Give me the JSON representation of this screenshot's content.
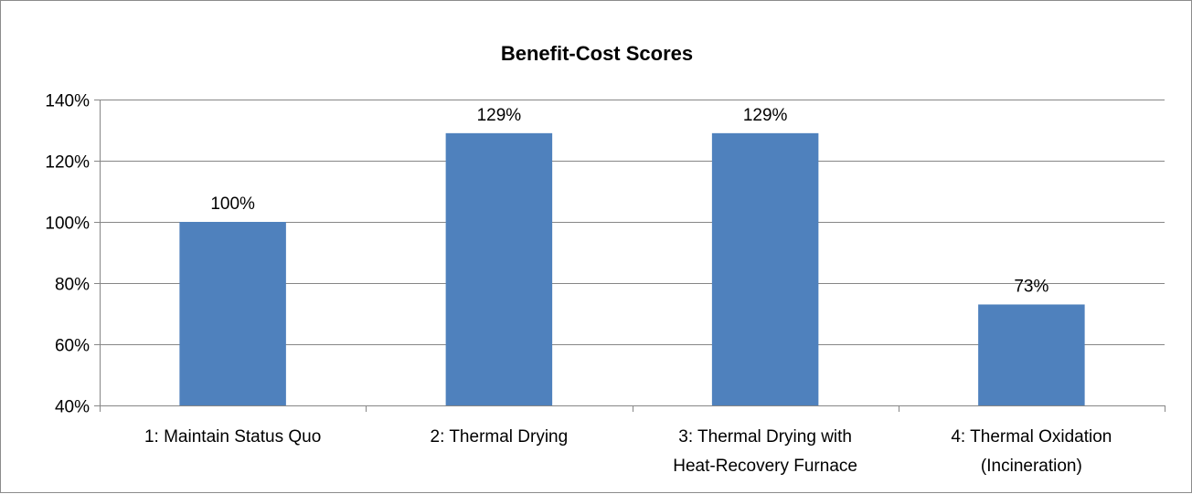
{
  "chart_data": {
    "type": "bar",
    "title": "Benefit-Cost Scores",
    "xlabel": "",
    "ylabel": "",
    "categories": [
      [
        "1: Maintain Status Quo"
      ],
      [
        "2: Thermal Drying"
      ],
      [
        "3: Thermal Drying with",
        "Heat-Recovery Furnace"
      ],
      [
        "4: Thermal Oxidation",
        "(Incineration)"
      ]
    ],
    "values": [
      100,
      129,
      129,
      73
    ],
    "data_labels": [
      "100%",
      "129%",
      "129%",
      "73%"
    ],
    "ylim": [
      40,
      140
    ],
    "yticks": [
      40,
      60,
      80,
      100,
      120,
      140
    ],
    "ytick_labels": [
      "40%",
      "60%",
      "80%",
      "100%",
      "120%",
      "140%"
    ],
    "grid": true,
    "legend": "none",
    "colors": {
      "bar": "#4f81bd",
      "grid": "#868686",
      "axis": "#868686",
      "border": "#8c8c8c"
    }
  }
}
